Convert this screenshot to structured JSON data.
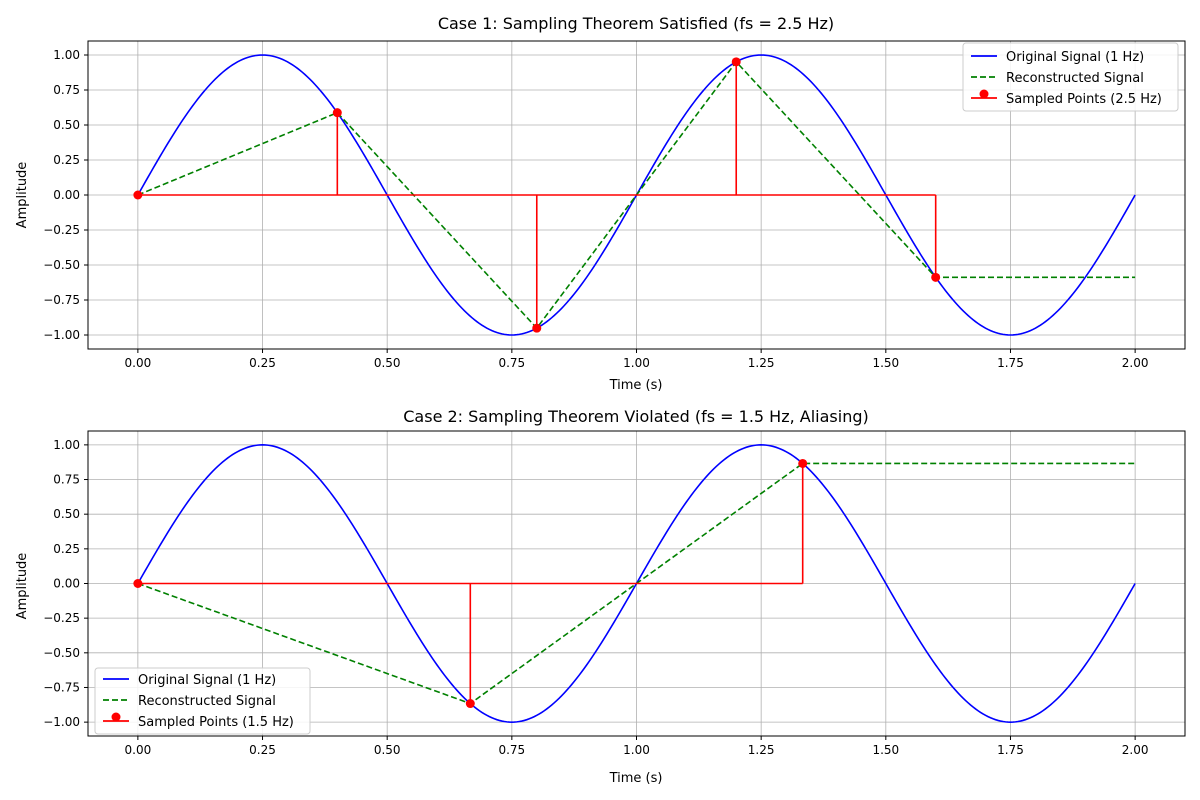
{
  "chart_data": [
    {
      "type": "line",
      "title": "Case 1: Sampling Theorem Satisfied (fs = 2.5 Hz)",
      "xlabel": "Time (s)",
      "ylabel": "Amplitude",
      "xlim": [
        -0.1,
        2.1
      ],
      "ylim": [
        -1.1,
        1.1
      ],
      "grid": true,
      "legend_position": "upper right",
      "x_ticks": [
        "0.00",
        "0.25",
        "0.50",
        "0.75",
        "1.00",
        "1.25",
        "1.50",
        "1.75",
        "2.00"
      ],
      "y_ticks": [
        "1.00",
        "0.75",
        "0.50",
        "0.25",
        "0.00",
        "−0.25",
        "−0.50",
        "−0.75",
        "−1.00"
      ],
      "signal_frequency_hz": 1,
      "signal_duration_s": 2.0,
      "sample_times": [
        0.0,
        0.4,
        0.8,
        1.2,
        1.6
      ],
      "sample_values": [
        0.0,
        0.588,
        -0.951,
        0.951,
        -0.588
      ],
      "reconstructed": {
        "x": [
          0.0,
          0.4,
          0.8,
          1.2,
          1.6,
          2.0
        ],
        "y": [
          0.0,
          0.588,
          -0.951,
          0.951,
          -0.588,
          -0.588
        ]
      },
      "legend": [
        "Original Signal (1 Hz)",
        "Reconstructed Signal",
        "Sampled Points (2.5 Hz)"
      ],
      "series": [
        {
          "name": "Original Signal (1 Hz)",
          "kind": "sine",
          "color": "#0000ff"
        },
        {
          "name": "Reconstructed Signal",
          "kind": "dashed-line",
          "color": "#008000"
        },
        {
          "name": "Sampled Points (2.5 Hz)",
          "kind": "stem",
          "color": "#ff0000"
        }
      ]
    },
    {
      "type": "line",
      "title": "Case 2: Sampling Theorem Violated (fs = 1.5 Hz, Aliasing)",
      "xlabel": "Time (s)",
      "ylabel": "Amplitude",
      "xlim": [
        -0.1,
        2.1
      ],
      "ylim": [
        -1.1,
        1.1
      ],
      "grid": true,
      "legend_position": "lower left",
      "x_ticks": [
        "0.00",
        "0.25",
        "0.50",
        "0.75",
        "1.00",
        "1.25",
        "1.50",
        "1.75",
        "2.00"
      ],
      "y_ticks": [
        "1.00",
        "0.75",
        "0.50",
        "0.25",
        "0.00",
        "−0.25",
        "−0.50",
        "−0.75",
        "−1.00"
      ],
      "signal_frequency_hz": 1,
      "signal_duration_s": 2.0,
      "sample_times": [
        0.0,
        0.6667,
        1.3333
      ],
      "sample_values": [
        0.0,
        -0.866,
        0.866
      ],
      "reconstructed": {
        "x": [
          0.0,
          0.6667,
          1.3333,
          2.0
        ],
        "y": [
          0.0,
          -0.866,
          0.866,
          0.866
        ]
      },
      "legend": [
        "Original Signal (1 Hz)",
        "Reconstructed Signal",
        "Sampled Points (1.5 Hz)"
      ],
      "series": [
        {
          "name": "Original Signal (1 Hz)",
          "kind": "sine",
          "color": "#0000ff"
        },
        {
          "name": "Reconstructed Signal",
          "kind": "dashed-line",
          "color": "#008000"
        },
        {
          "name": "Sampled Points (1.5 Hz)",
          "kind": "stem",
          "color": "#ff0000"
        }
      ]
    }
  ]
}
